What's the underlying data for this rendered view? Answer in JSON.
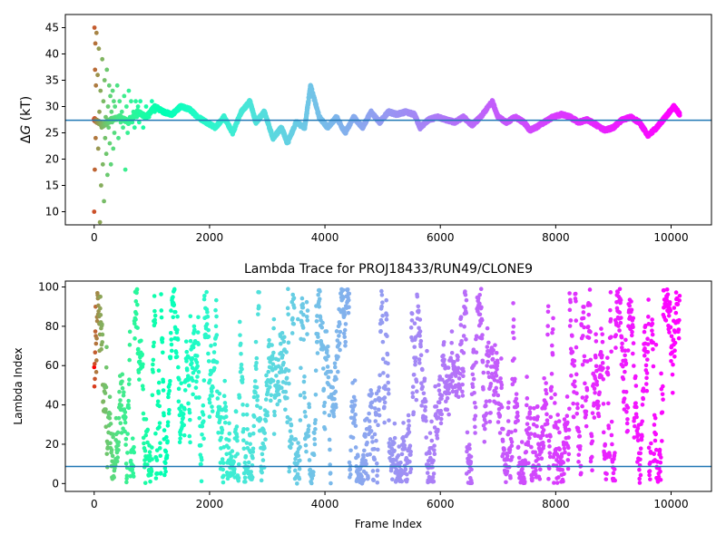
{
  "chart_data": [
    {
      "type": "scatter",
      "title": "",
      "xlabel": "",
      "ylabel_prefix": "Δ",
      "ylabel_var": "G",
      "ylabel_suffix": " (kT)",
      "xlim": [
        -500,
        10700
      ],
      "ylim": [
        7.5,
        47.5
      ],
      "xticks": [
        0,
        2000,
        4000,
        6000,
        8000,
        10000
      ],
      "yticks": [
        10,
        15,
        20,
        25,
        30,
        35,
        40,
        45
      ],
      "hline": 27.4,
      "hline_color": "#1f77b4",
      "colormap": "rainbow (red at start → violet at end)",
      "trace": {
        "x": [
          0,
          150,
          300,
          450,
          600,
          750,
          900,
          1050,
          1200,
          1350,
          1500,
          1650,
          1800,
          1950,
          2100,
          2250,
          2400,
          2550,
          2700,
          2800,
          2950,
          3100,
          3250,
          3350,
          3500,
          3650,
          3750,
          3900,
          4050,
          4200,
          4350,
          4500,
          4650,
          4800,
          4950,
          5100,
          5250,
          5400,
          5550,
          5650,
          5800,
          5950,
          6100,
          6250,
          6400,
          6550,
          6700,
          6900,
          7000,
          7150,
          7300,
          7450,
          7550,
          7650,
          7800,
          7950,
          8100,
          8250,
          8400,
          8550,
          8700,
          8850,
          9000,
          9150,
          9300,
          9450,
          9600,
          9750,
          9900,
          10050,
          10150
        ],
        "y": [
          27.5,
          26.5,
          27.5,
          28,
          27,
          29,
          28,
          30,
          29,
          28.5,
          30,
          29.5,
          28,
          27,
          26,
          28,
          25,
          29,
          31,
          27,
          29,
          24,
          26,
          23,
          27,
          26,
          34,
          28,
          26,
          28,
          25,
          28,
          26,
          29,
          27,
          29,
          28.5,
          29,
          28.5,
          26,
          27.5,
          28,
          27.5,
          27,
          28,
          26.5,
          28,
          31,
          28,
          27,
          28,
          27,
          25.5,
          26,
          27,
          28,
          28.5,
          28,
          27,
          27.5,
          26.5,
          25.5,
          26,
          27.5,
          28,
          27,
          24.5,
          26,
          28,
          30,
          28.5
        ]
      },
      "early_scatter": {
        "x": [
          0,
          5,
          10,
          15,
          20,
          25,
          30,
          40,
          50,
          60,
          70,
          80,
          90,
          100,
          110,
          120,
          130,
          140,
          150,
          160,
          170,
          180,
          190,
          200,
          210,
          220,
          230,
          240,
          250,
          260,
          270,
          280,
          290,
          300,
          310,
          320,
          330,
          340,
          350,
          360,
          380,
          400,
          420,
          440,
          460,
          480,
          500,
          520,
          540,
          560,
          580,
          600,
          620,
          640,
          660,
          680,
          700,
          720,
          740,
          760,
          780,
          800,
          850,
          900,
          950,
          1000,
          1050,
          1100
        ],
        "y": [
          10,
          45,
          18,
          37,
          42,
          24,
          34,
          44,
          27,
          36,
          22,
          41,
          29,
          8,
          33,
          15,
          26,
          39,
          19,
          31,
          12,
          35,
          24,
          28,
          21,
          37,
          17,
          30,
          26,
          34,
          23,
          32,
          19,
          29,
          27,
          33,
          22,
          31,
          25,
          30,
          28,
          34,
          24,
          31,
          27,
          29,
          26,
          32,
          18,
          30,
          25,
          33,
          28,
          31,
          27,
          29,
          26,
          31,
          28,
          30,
          27,
          31,
          26,
          30,
          28,
          31,
          29,
          30
        ]
      }
    },
    {
      "type": "scatter",
      "title": "Lambda Trace for PROJ18433/RUN49/CLONE9",
      "xlabel": "Frame Index",
      "ylabel": "Lambda Index",
      "xlim": [
        -500,
        10700
      ],
      "ylim": [
        -4,
        103
      ],
      "xticks": [
        0,
        2000,
        4000,
        6000,
        8000,
        10000
      ],
      "yticks": [
        0,
        20,
        40,
        60,
        80,
        100
      ],
      "hline": 8.7,
      "hline_color": "#1f77b4",
      "colormap": "rainbow (red at start → violet at end)",
      "x_max": 10150,
      "y_max": 99
    }
  ]
}
